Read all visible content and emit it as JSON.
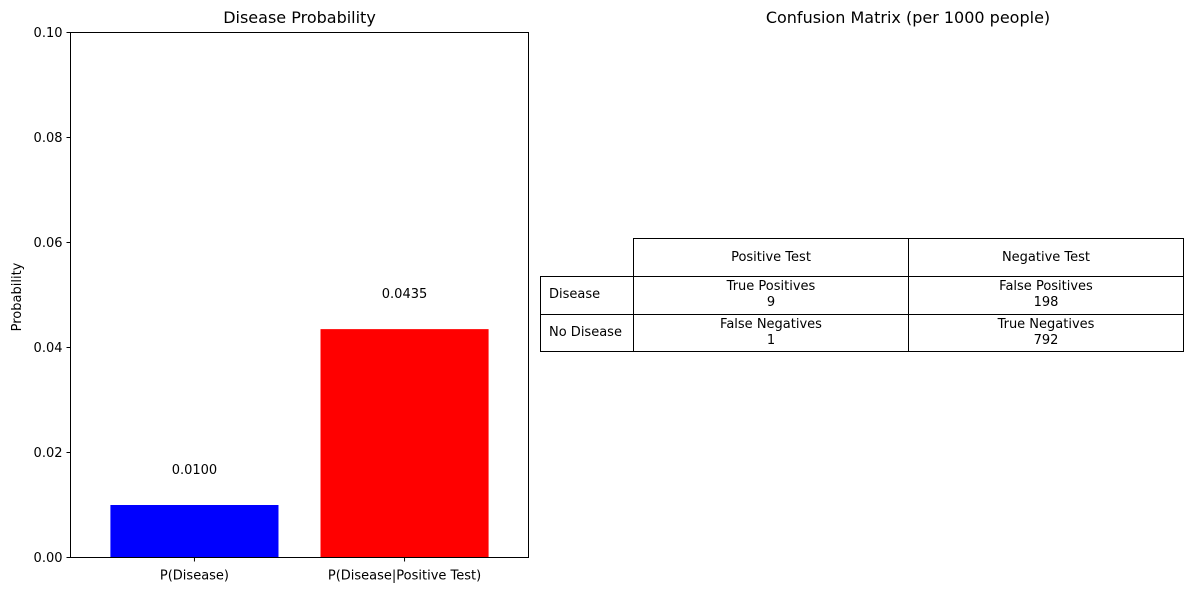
{
  "chart_data": [
    {
      "type": "bar",
      "title": "Disease Probability",
      "xlabel": "",
      "ylabel": "Probability",
      "ylim": [
        0,
        0.1
      ],
      "yticks": [
        "0.00",
        "0.02",
        "0.04",
        "0.06",
        "0.08",
        "0.10"
      ],
      "ytick_values": [
        0,
        0.02,
        0.04,
        0.06,
        0.08,
        0.1
      ],
      "categories": [
        "P(Disease)",
        "P(Disease|Positive Test)"
      ],
      "values": [
        0.01,
        0.0435
      ],
      "value_labels": [
        "0.0100",
        "0.0435"
      ],
      "colors": [
        "#0000ff",
        "#ff0000"
      ],
      "grid": false
    },
    {
      "type": "table",
      "title": "Confusion Matrix (per 1000 people)",
      "columns": [
        "Positive Test",
        "Negative Test"
      ],
      "rows": [
        {
          "label": "Disease",
          "cells": [
            {
              "name": "True Positives",
              "value": "9"
            },
            {
              "name": "False Positives",
              "value": "198"
            }
          ]
        },
        {
          "label": "No Disease",
          "cells": [
            {
              "name": "False Negatives",
              "value": "1"
            },
            {
              "name": "True Negatives",
              "value": "792"
            }
          ]
        }
      ]
    }
  ]
}
